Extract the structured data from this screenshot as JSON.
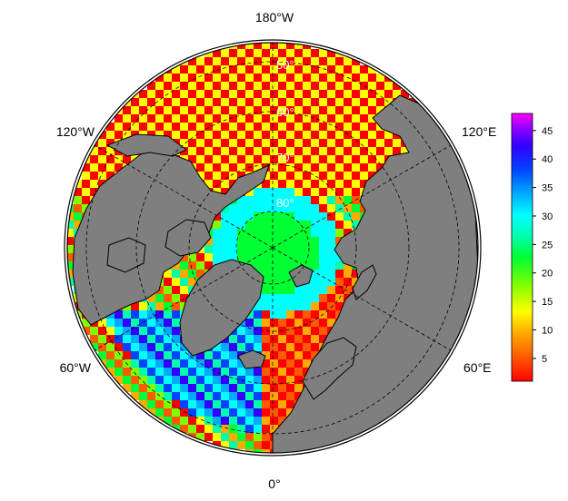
{
  "map": {
    "projection": "north-polar-stereographic",
    "land_color": "#7f7f7f",
    "coast_color": "#000000",
    "lon_labels": [
      {
        "text": "180°W",
        "lon": 180
      },
      {
        "text": "120°W",
        "lon": -120
      },
      {
        "text": "120°E",
        "lon": 120
      },
      {
        "text": "60°W",
        "lon": -60
      },
      {
        "text": "60°E",
        "lon": 60
      },
      {
        "text": "0°",
        "lon": 0
      }
    ],
    "lat_labels": [
      {
        "text": "50°",
        "lat": 50
      },
      {
        "text": "60°",
        "lat": 60
      },
      {
        "text": "70°",
        "lat": 70
      },
      {
        "text": "80°",
        "lat": 80
      }
    ]
  },
  "colorbar": {
    "ticks": [
      "5",
      "10",
      "15",
      "20",
      "25",
      "30",
      "35",
      "40",
      "45"
    ],
    "range": [
      1,
      48
    ],
    "colors": [
      "#ff0000",
      "#ff5a00",
      "#ffaa00",
      "#ffff00",
      "#7fff00",
      "#00ff33",
      "#00ffaa",
      "#00ffff",
      "#00aaff",
      "#0044ff",
      "#3300ff",
      "#9900ff",
      "#ff00ff"
    ]
  }
}
